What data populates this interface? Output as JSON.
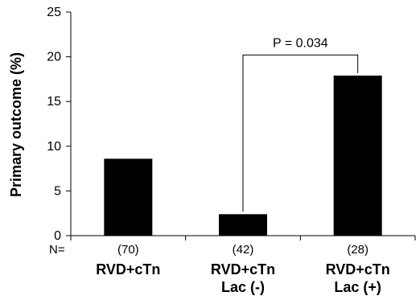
{
  "chart_data": {
    "type": "bar",
    "ylabel": "Primary outcome (%)",
    "ylim": [
      0,
      25
    ],
    "yticks": [
      0,
      5,
      10,
      15,
      20,
      25
    ],
    "n_prefix": "N=",
    "categories": [
      {
        "lines": [
          "RVD+cTn"
        ],
        "n": "(70)",
        "value": 8.6
      },
      {
        "lines": [
          "RVD+cTn",
          "Lac (-)"
        ],
        "n": "(42)",
        "value": 2.4
      },
      {
        "lines": [
          "RVD+cTn",
          "Lac (+)"
        ],
        "n": "(28)",
        "value": 17.9
      }
    ],
    "bar_color": "#000000",
    "grid": false,
    "annotation": {
      "text": "P = 0.034",
      "from": 1,
      "to": 2,
      "y": 20.2
    }
  }
}
